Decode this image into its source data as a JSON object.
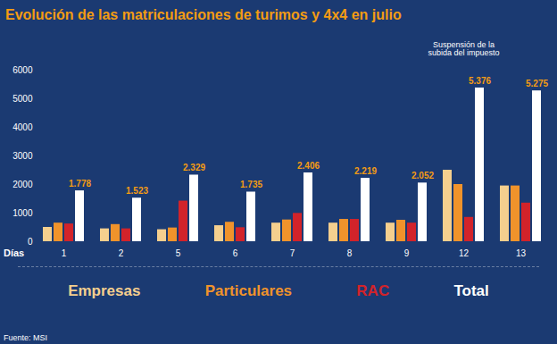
{
  "chart_data": {
    "type": "bar",
    "title": "Evolución de las matriculaciones de turimos y 4x4 en julio",
    "x_label": "Días",
    "annotation": {
      "text": "Suspensión de la subida del impuesto",
      "category": "12"
    },
    "source": "Fuente: MSI",
    "categories": [
      "1",
      "2",
      "5",
      "6",
      "7",
      "8",
      "9",
      "12",
      "13"
    ],
    "series": [
      {
        "name": "Empresas",
        "color": "#f5cf8e",
        "values": [
          500,
          450,
          420,
          560,
          650,
          650,
          650,
          2500,
          1950
        ]
      },
      {
        "name": "Particulares",
        "color": "#f0932b",
        "values": [
          650,
          600,
          480,
          680,
          760,
          780,
          750,
          2000,
          1950
        ]
      },
      {
        "name": "RAC",
        "color": "#d2232a",
        "values": [
          620,
          450,
          1420,
          490,
          990,
          780,
          650,
          850,
          1350
        ]
      },
      {
        "name": "Total",
        "color": "#ffffff",
        "values": [
          1778,
          1523,
          2329,
          1735,
          2406,
          2219,
          2052,
          5376,
          5275
        ],
        "value_labels": [
          "1.778",
          "1.523",
          "2.329",
          "1.735",
          "2.406",
          "2.219",
          "2.052",
          "5.376",
          "5.275"
        ]
      }
    ],
    "ylim": [
      0,
      6000
    ],
    "yticks": [
      0,
      1000,
      2000,
      3000,
      4000,
      5000,
      6000
    ],
    "grid": false,
    "legend": "bottom",
    "data_labels": true
  }
}
